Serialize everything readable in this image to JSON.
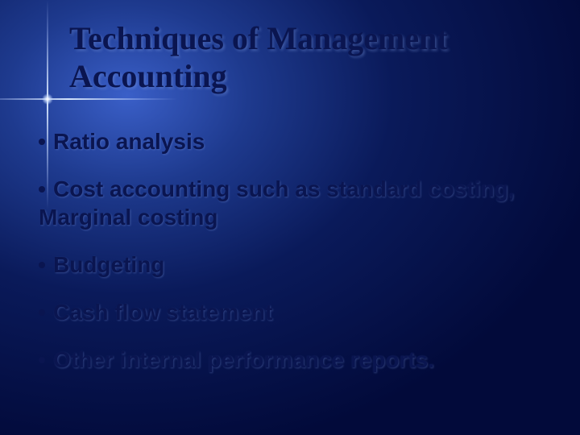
{
  "slide": {
    "title": "Techniques of Management Accounting",
    "bullets": [
      "Ratio analysis",
      "Cost accounting such as standard costing, Marginal costing",
      "Budgeting",
      "Cash flow statement",
      "Other internal performance reports."
    ],
    "title_color": "#0a1550",
    "bullet_color": "#0a1550",
    "title_fontsize": 40,
    "bullet_fontsize": 28,
    "background_gradient_center": "#3a5fc8",
    "background_gradient_outer": "#020a3a",
    "sparkle_color": "#dcebff"
  }
}
